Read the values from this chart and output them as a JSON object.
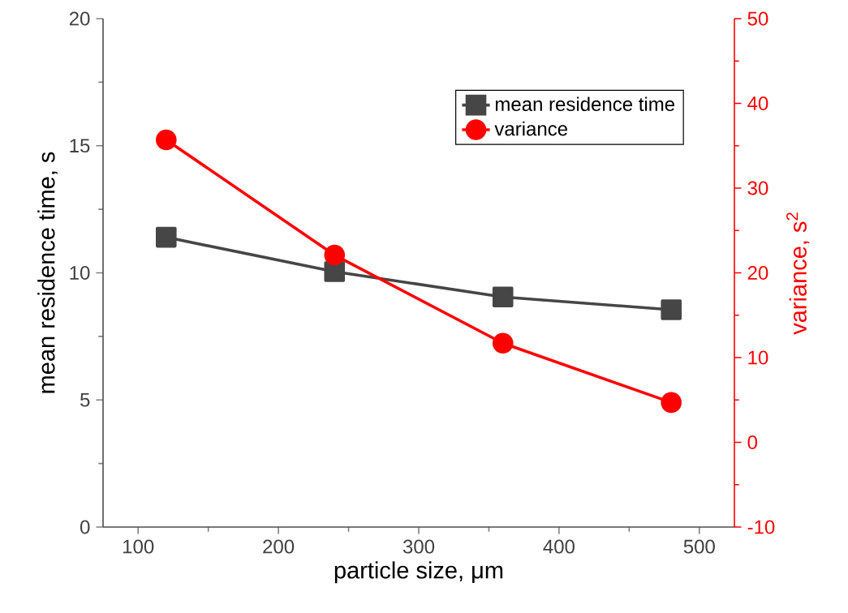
{
  "chart_data": {
    "type": "line",
    "xlabel": "particle size, μm",
    "ylabel": "mean residence time, s",
    "y2label": "variance, s$^{2}$",
    "x": [
      120,
      240,
      360,
      480
    ],
    "series": [
      {
        "name": "mean residence time",
        "color": "#464646",
        "marker": "square",
        "axis": "y",
        "values": [
          11.4,
          10.05,
          9.05,
          8.55
        ]
      },
      {
        "name": "variance",
        "color": "#ff0000",
        "marker": "circle",
        "axis": "y2",
        "values": [
          35.7,
          22.1,
          11.7,
          4.7
        ]
      }
    ],
    "xlim": [
      75,
      525
    ],
    "xticks": [
      100,
      200,
      300,
      400,
      500
    ],
    "ylim": [
      0,
      20
    ],
    "yticks": [
      0,
      5,
      10,
      15,
      20
    ],
    "y2lim": [
      -10,
      50
    ],
    "y2ticks": [
      -10,
      0,
      10,
      20,
      30,
      40,
      50
    ],
    "legend": "top right",
    "grid": false,
    "line_style": "solid"
  }
}
